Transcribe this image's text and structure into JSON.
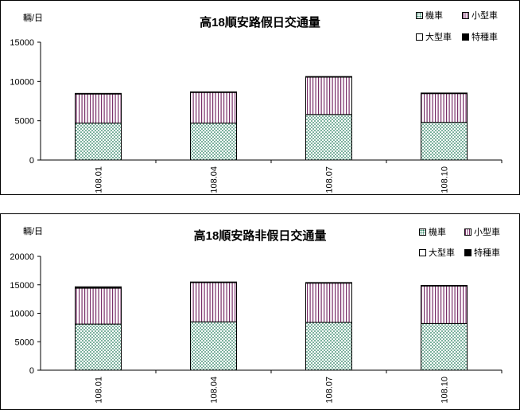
{
  "chart_data": [
    {
      "type": "bar",
      "stacked": true,
      "title": "高18順安路假日交通量",
      "ylabel": "輛/日",
      "ylim": [
        0,
        15000
      ],
      "yticks": [
        "0",
        "5000",
        "10000",
        "15000"
      ],
      "categories": [
        "108.01",
        "108.04",
        "108.07",
        "108.10"
      ],
      "legend_position": "top-right",
      "grid": false,
      "series": [
        {
          "name": "機車",
          "pattern": "dots",
          "color": "#1f7a5a",
          "values": [
            4700,
            4700,
            5800,
            4800
          ]
        },
        {
          "name": "小型車",
          "pattern": "stripes",
          "color": "#7a2f6a",
          "values": [
            3700,
            3900,
            4750,
            3650
          ]
        },
        {
          "name": "大型車",
          "pattern": "white",
          "color": "#ffffff",
          "values": [
            0,
            0,
            0,
            0
          ]
        },
        {
          "name": "特種車",
          "pattern": "black",
          "color": "#000000",
          "values": [
            80,
            80,
            80,
            80
          ]
        }
      ]
    },
    {
      "type": "bar",
      "stacked": true,
      "title": "高18順安路非假日交通量",
      "ylabel": "輛/日",
      "ylim": [
        0,
        20000
      ],
      "yticks": [
        "0",
        "5000",
        "10000",
        "15000",
        "20000"
      ],
      "categories": [
        "108.01",
        "108.04",
        "108.07",
        "108.10"
      ],
      "legend_position": "top-right",
      "grid": false,
      "series": [
        {
          "name": "機車",
          "pattern": "dots",
          "color": "#1f7a5a",
          "values": [
            8100,
            8500,
            8400,
            8200
          ]
        },
        {
          "name": "小型車",
          "pattern": "stripes",
          "color": "#7a2f6a",
          "values": [
            6300,
            6900,
            6900,
            6600
          ]
        },
        {
          "name": "大型車",
          "pattern": "white",
          "color": "#ffffff",
          "values": [
            0,
            0,
            0,
            0
          ]
        },
        {
          "name": "特種車",
          "pattern": "black",
          "color": "#000000",
          "values": [
            250,
            100,
            100,
            100
          ]
        }
      ]
    }
  ]
}
